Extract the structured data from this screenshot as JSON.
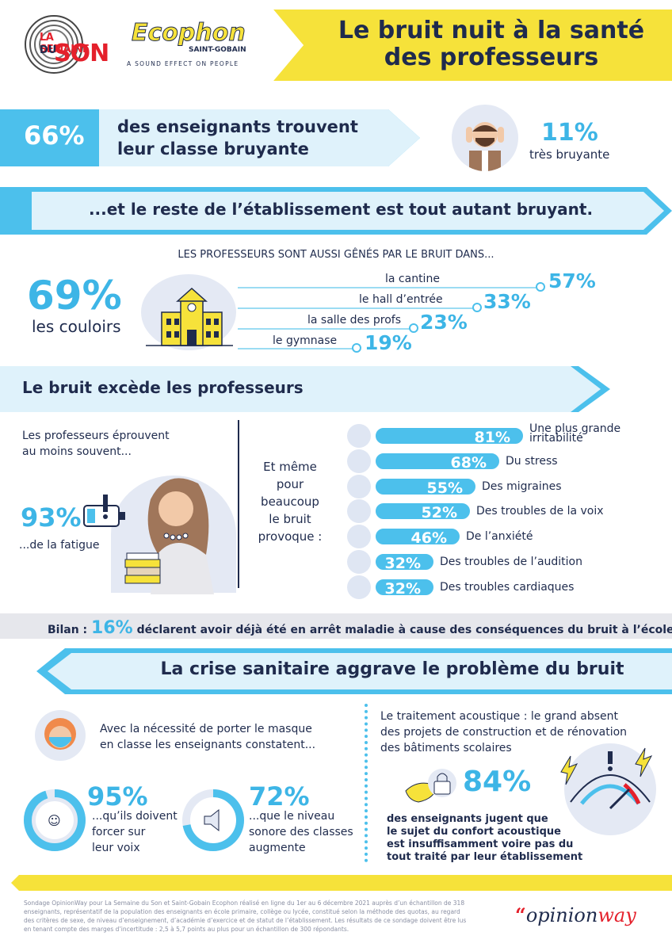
{
  "header": {
    "logo_semaine_line1": "LA SEMAINE",
    "logo_semaine_line2": "DU",
    "logo_semaine_line3": "SON",
    "logo_ecophon_name": "Ecophon",
    "logo_ecophon_sub": "SAINT-GOBAIN",
    "logo_ecophon_tagline": "A SOUND EFFECT ON PEOPLE",
    "title_line1": "Le bruit nuit à la santé",
    "title_line2": "des professeurs"
  },
  "stat_noisy_class": {
    "percent": "66%",
    "text_line1": "des enseignants trouvent",
    "text_line2": "leur classe bruyante",
    "sub_percent": "11%",
    "sub_text": "très bruyante"
  },
  "rest_banner": "...et le reste de l’établissement est tout autant bruyant.",
  "places": {
    "heading": "LES PROFESSEURS SONT AUSSI GÊNÉS PAR LE BRUIT DANS...",
    "main_percent": "69%",
    "main_label": "les couloirs",
    "items": [
      {
        "label": "la cantine",
        "percent": "57%"
      },
      {
        "label": "le hall d’entrée",
        "percent": "33%"
      },
      {
        "label": "la salle des profs",
        "percent": "23%"
      },
      {
        "label": "le gymnase",
        "percent": "19%"
      }
    ]
  },
  "exceeds_banner": "Le bruit excède les professeurs",
  "fatigue": {
    "intro_line1": "Les professeurs éprouvent",
    "intro_line2": "au moins souvent...",
    "percent": "93%",
    "label": "...de la fatigue"
  },
  "provokes": {
    "lines": [
      "Et même",
      "pour",
      "beaucoup",
      "le bruit",
      "provoque :"
    ],
    "bars": [
      {
        "percent": "81%",
        "value": 81,
        "label_line1": "Une plus grande",
        "label_line2": "irritabilité"
      },
      {
        "percent": "68%",
        "value": 68,
        "label_line1": "Du stress",
        "label_line2": ""
      },
      {
        "percent": "55%",
        "value": 55,
        "label_line1": "Des migraines",
        "label_line2": ""
      },
      {
        "percent": "52%",
        "value": 52,
        "label_line1": "Des troubles de la voix",
        "label_line2": ""
      },
      {
        "percent": "46%",
        "value": 46,
        "label_line1": "De l’anxiété",
        "label_line2": ""
      },
      {
        "percent": "32%",
        "value": 32,
        "label_line1": "Des troubles de l’audition",
        "label_line2": ""
      },
      {
        "percent": "32%",
        "value": 32,
        "label_line1": "Des troubles cardiaques",
        "label_line2": ""
      }
    ]
  },
  "bilan": {
    "label": "Bilan :",
    "percent": "16%",
    "text": "déclarent avoir déjà été en arrêt maladie à cause des conséquences du bruit à l’école"
  },
  "crisis_banner": "La crise sanitaire aggrave le problème du bruit",
  "mask": {
    "intro_line1": "Avec la nécessité de porter le masque",
    "intro_line2": "en classe les enseignants constatent...",
    "stat1_percent": "95%",
    "stat1_line1": "...qu’ils doivent",
    "stat1_line2": "forcer sur",
    "stat1_line3": "leur voix",
    "stat1_value": 95,
    "stat2_percent": "72%",
    "stat2_line1": "...que le niveau",
    "stat2_line2": "sonore des classes",
    "stat2_line3": "augmente",
    "stat2_value": 72
  },
  "acoustic": {
    "intro_line1": "Le traitement acoustique : le grand absent",
    "intro_line2": "des projets de construction et de rénovation",
    "intro_line3": "des bâtiments scolaires",
    "percent": "84%",
    "text_line1": "des enseignants jugent que",
    "text_line2": "le sujet du confort acoustique",
    "text_line3": "est insuffisamment voire pas du",
    "text_line4": "tout traité par leur établissement"
  },
  "footer": {
    "note": "Sondage OpinionWay pour La Semaine du Son et Saint-Gobain Ecophon réalisé en ligne du 1er au 6 décembre 2021 auprès d’un échantillon de 318 enseignants, représentatif de la population des enseignants en école primaire, collège ou lycée, constitué selon la méthode des quotas, au regard des critères de sexe, de niveau d’enseignement, d’académie d’exercice et de statut de l’établissement. Les résultats de ce sondage doivent être lus en tenant compte des marges d’incertitude : 2,5 à 5,7 points au plus pour un échantillon de 300 répondants.",
    "brand_opinion": "opinion",
    "brand_way": "way",
    "brand_quote": "“"
  },
  "colors": {
    "blue": "#4cc0ec",
    "navy": "#1f2b4d",
    "yellow": "#f6e23a",
    "grey": "#e6e7ec"
  }
}
